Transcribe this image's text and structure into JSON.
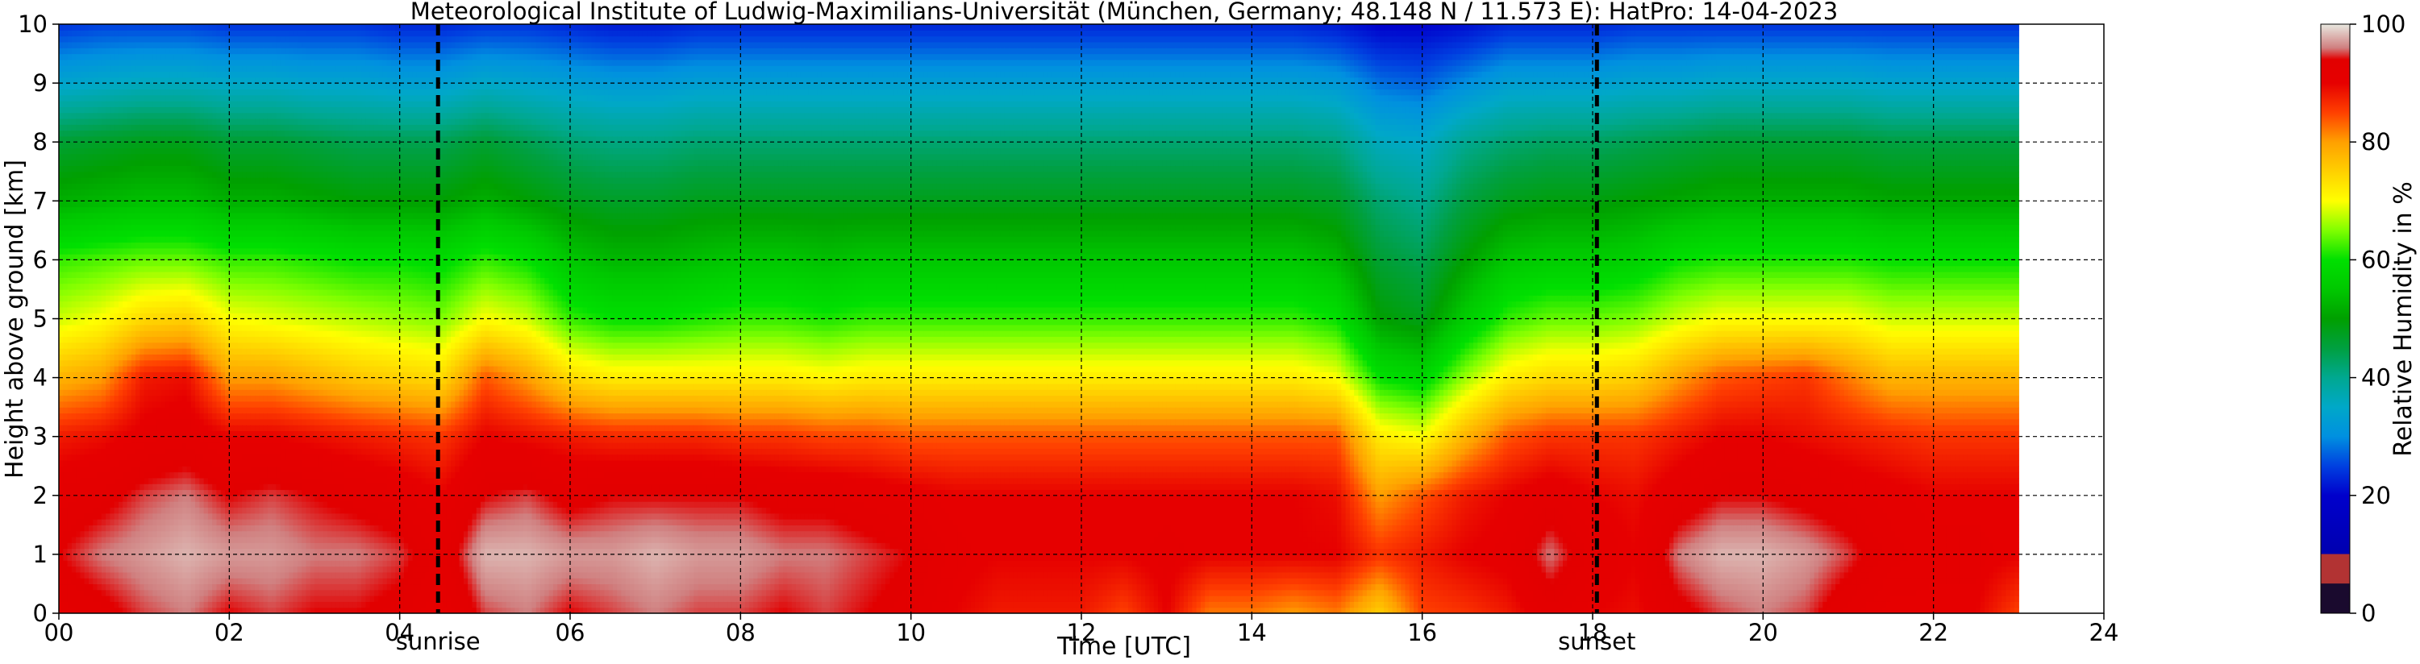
{
  "chart_data": {
    "type": "heatmap",
    "title": "Meteorological Institute of Ludwig-Maximilians-Universität (München, Germany; 48.148 N / 11.573 E):    HatPro: 14-04-2023",
    "xlabel": "Time [UTC]",
    "ylabel": "Height above ground [km]",
    "xlim": [
      0,
      24
    ],
    "ylim": [
      0,
      10
    ],
    "x_ticks": [
      "00",
      "02",
      "04",
      "06",
      "08",
      "10",
      "12",
      "14",
      "16",
      "18",
      "20",
      "22",
      "24"
    ],
    "y_ticks": [
      "0",
      "1",
      "2",
      "3",
      "4",
      "5",
      "6",
      "7",
      "8",
      "9",
      "10"
    ],
    "grid": true,
    "data_end_hour": 23.0,
    "events": [
      {
        "label": "sunrise",
        "hour": 4.45
      },
      {
        "label": "sunset",
        "hour": 18.05
      }
    ],
    "colorbar": {
      "label": "Relative Humidity in %",
      "range": [
        0,
        100
      ],
      "ticks": [
        "0",
        "20",
        "40",
        "60",
        "80",
        "100"
      ],
      "colors": [
        {
          "value": 0,
          "color": "#1a0a2e"
        },
        {
          "value": 5,
          "color": "#1a0a2e"
        },
        {
          "value": 5.1,
          "color": "#b23333"
        },
        {
          "value": 10,
          "color": "#b23333"
        },
        {
          "value": 10.1,
          "color": "#0000b0"
        },
        {
          "value": 20,
          "color": "#0000cc"
        },
        {
          "value": 25,
          "color": "#0040e0"
        },
        {
          "value": 30,
          "color": "#0090e0"
        },
        {
          "value": 35,
          "color": "#00a8c8"
        },
        {
          "value": 40,
          "color": "#00a890"
        },
        {
          "value": 45,
          "color": "#00a040"
        },
        {
          "value": 50,
          "color": "#00a000"
        },
        {
          "value": 55,
          "color": "#00c800"
        },
        {
          "value": 60,
          "color": "#00e000"
        },
        {
          "value": 65,
          "color": "#80ff00"
        },
        {
          "value": 70,
          "color": "#ffff00"
        },
        {
          "value": 75,
          "color": "#ffd000"
        },
        {
          "value": 80,
          "color": "#ffa000"
        },
        {
          "value": 85,
          "color": "#ff4000"
        },
        {
          "value": 90,
          "color": "#e60000"
        },
        {
          "value": 94,
          "color": "#e20000"
        },
        {
          "value": 96,
          "color": "#d08080"
        },
        {
          "value": 100,
          "color": "#e8e8e0"
        }
      ]
    },
    "rh_profile": {
      "time_hours": [
        0,
        0.5,
        1.0,
        1.5,
        2.0,
        2.5,
        3.0,
        3.5,
        4.0,
        4.5,
        5.0,
        5.5,
        6.0,
        6.5,
        7.0,
        7.5,
        8.0,
        8.5,
        9.0,
        9.5,
        10.0,
        10.5,
        11.0,
        11.5,
        12.0,
        12.5,
        13.0,
        13.5,
        14.0,
        14.5,
        15.0,
        15.5,
        16.0,
        16.5,
        17.0,
        17.5,
        18.0,
        18.5,
        19.0,
        19.5,
        20.0,
        20.5,
        21.0,
        21.5,
        22.0,
        22.5,
        23.0
      ],
      "height_km": [
        0,
        0.5,
        1,
        1.5,
        2,
        2.5,
        3,
        3.5,
        4,
        4.5,
        5,
        5.5,
        6,
        6.5,
        7,
        7.5,
        8,
        8.5,
        9,
        9.5,
        10
      ],
      "rh_percent_at_0km": [
        92,
        93,
        95,
        96,
        94,
        95,
        94,
        94,
        93,
        90,
        95,
        96,
        94,
        95,
        96,
        95,
        95,
        94,
        95,
        94,
        93,
        90,
        88,
        88,
        88,
        85,
        90,
        82,
        82,
        80,
        82,
        75,
        85,
        86,
        88,
        92,
        90,
        89,
        93,
        95,
        96,
        95,
        92,
        90,
        90,
        90,
        85
      ],
      "rh_percent_at_1km": [
        94,
        96,
        97,
        98,
        97,
        97,
        96,
        96,
        95,
        92,
        98,
        98,
        97,
        97,
        98,
        97,
        97,
        96,
        96,
        95,
        94,
        91,
        90,
        90,
        90,
        90,
        91,
        90,
        90,
        90,
        90,
        86,
        88,
        90,
        91,
        96,
        92,
        90,
        96,
        98,
        98,
        97,
        95,
        92,
        91,
        91,
        90
      ],
      "rh_percent_at_2km": [
        92,
        93,
        95,
        96,
        94,
        95,
        94,
        93,
        92,
        90,
        94,
        95,
        93,
        94,
        94,
        94,
        94,
        93,
        93,
        92,
        91,
        90,
        90,
        90,
        90,
        90,
        90,
        90,
        90,
        90,
        89,
        80,
        84,
        88,
        90,
        92,
        90,
        89,
        92,
        94,
        94,
        93,
        92,
        91,
        90,
        90,
        90
      ],
      "rh_percent_at_3km": [
        88,
        89,
        91,
        92,
        90,
        90,
        89,
        88,
        87,
        86,
        90,
        89,
        88,
        87,
        87,
        87,
        86,
        86,
        85,
        85,
        84,
        84,
        84,
        84,
        84,
        84,
        84,
        84,
        84,
        84,
        84,
        72,
        70,
        78,
        84,
        86,
        86,
        86,
        88,
        90,
        90,
        89,
        88,
        87,
        86,
        86,
        86
      ],
      "rh_percent_at_4km": [
        78,
        80,
        88,
        89,
        80,
        80,
        78,
        76,
        75,
        74,
        84,
        80,
        74,
        72,
        72,
        72,
        72,
        72,
        71,
        72,
        72,
        72,
        72,
        72,
        72,
        72,
        72,
        72,
        72,
        72,
        70,
        60,
        58,
        66,
        72,
        74,
        74,
        75,
        80,
        84,
        85,
        86,
        82,
        78,
        78,
        78,
        78
      ],
      "rh_percent_at_5km": [
        68,
        70,
        74,
        75,
        70,
        69,
        68,
        67,
        66,
        65,
        70,
        68,
        62,
        60,
        60,
        61,
        62,
        62,
        61,
        62,
        62,
        62,
        62,
        62,
        62,
        62,
        62,
        62,
        62,
        62,
        60,
        50,
        48,
        56,
        62,
        64,
        64,
        65,
        68,
        70,
        70,
        70,
        70,
        68,
        68,
        68,
        68
      ],
      "rh_percent_at_6km": [
        62,
        63,
        64,
        64,
        62,
        62,
        61,
        60,
        60,
        59,
        62,
        60,
        55,
        53,
        53,
        54,
        55,
        55,
        54,
        55,
        55,
        55,
        55,
        55,
        55,
        55,
        55,
        55,
        55,
        55,
        53,
        46,
        44,
        50,
        55,
        56,
        56,
        57,
        60,
        61,
        61,
        61,
        61,
        60,
        60,
        60,
        60
      ],
      "rh_percent_at_7km": [
        52,
        53,
        54,
        54,
        52,
        52,
        51,
        50,
        50,
        50,
        52,
        50,
        48,
        47,
        47,
        48,
        48,
        48,
        48,
        48,
        48,
        48,
        48,
        48,
        48,
        48,
        48,
        48,
        48,
        48,
        47,
        42,
        40,
        45,
        48,
        49,
        49,
        50,
        51,
        52,
        52,
        52,
        52,
        51,
        51,
        51,
        51
      ],
      "rh_percent_at_8km": [
        46,
        47,
        48,
        48,
        46,
        46,
        45,
        44,
        44,
        44,
        46,
        44,
        42,
        41,
        41,
        42,
        42,
        42,
        42,
        42,
        42,
        42,
        42,
        42,
        42,
        42,
        42,
        42,
        42,
        42,
        41,
        36,
        35,
        40,
        42,
        43,
        43,
        44,
        45,
        46,
        46,
        46,
        46,
        45,
        45,
        45,
        45
      ],
      "rh_percent_at_9km": [
        34,
        35,
        36,
        36,
        35,
        35,
        34,
        34,
        33,
        33,
        35,
        34,
        33,
        32,
        32,
        33,
        33,
        33,
        33,
        33,
        33,
        33,
        33,
        33,
        33,
        33,
        33,
        33,
        33,
        33,
        32,
        28,
        27,
        30,
        33,
        33,
        33,
        34,
        34,
        35,
        35,
        35,
        35,
        34,
        34,
        34,
        34
      ],
      "rh_percent_at_10km": [
        24,
        25,
        25,
        25,
        24,
        24,
        24,
        24,
        23,
        23,
        24,
        24,
        23,
        22,
        22,
        23,
        23,
        23,
        23,
        23,
        23,
        23,
        23,
        23,
        23,
        23,
        23,
        23,
        23,
        23,
        22,
        20,
        20,
        21,
        23,
        23,
        23,
        24,
        24,
        24,
        24,
        24,
        24,
        24,
        24,
        24,
        24
      ]
    }
  }
}
